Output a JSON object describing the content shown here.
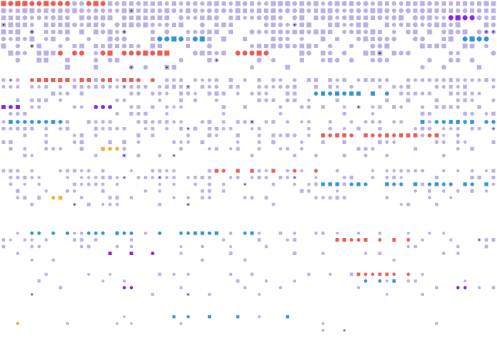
{
  "chart_data": {
    "type": "scatter",
    "title": "",
    "xlabel": "",
    "ylabel": "",
    "grid": false,
    "legend": "none",
    "colors": {
      "lavender": "#b9b0e6",
      "red": "#ec5a50",
      "blue": "#2f93d6",
      "purple": "#8a23e0",
      "orange": "#f2ad3a",
      "dark": "#41305e"
    },
    "bands": [
      {
        "name": "band-1",
        "rows": 10,
        "fill": [
          0.98,
          0.9,
          0.8,
          0.72,
          0.62,
          0.5,
          0.35,
          0.22
        ],
        "scale": 1.0
      },
      {
        "name": "band-2",
        "rows": 6,
        "fill": [
          0.7,
          0.55,
          0.4,
          0.26
        ],
        "scale": 0.82
      },
      {
        "name": "band-3",
        "rows": 6,
        "fill": [
          0.6,
          0.5,
          0.35,
          0.2
        ],
        "scale": 0.78
      },
      {
        "name": "band-4",
        "rows": 6,
        "fill": [
          0.55,
          0.45,
          0.3,
          0.18
        ],
        "scale": 0.74
      },
      {
        "name": "band-5",
        "rows": 5,
        "fill": [
          0.35,
          0.18,
          0.1
        ],
        "scale": 0.7
      },
      {
        "name": "band-6",
        "rows": 4,
        "fill": [
          0.22,
          0.1
        ],
        "scale": 0.66
      },
      {
        "name": "band-7",
        "rows": 3,
        "fill": [
          0.06
        ],
        "scale": 0.62
      }
    ],
    "highlights": [
      {
        "band": "band-1",
        "color": "red",
        "cols": [
          0,
          1,
          2,
          3,
          4,
          5,
          6,
          7,
          8,
          9,
          12,
          13,
          14
        ]
      },
      {
        "band": "band-1",
        "color": "purple",
        "cols": [
          63,
          64,
          65,
          66
        ]
      },
      {
        "band": "band-1",
        "color": "blue",
        "cols": [
          22,
          23,
          24,
          25,
          27,
          28,
          65,
          66,
          67,
          68
        ]
      },
      {
        "band": "band-1",
        "color": "red",
        "cols": [
          33,
          34,
          35,
          36,
          37,
          8,
          10,
          11,
          14,
          15,
          17,
          18,
          19,
          20,
          21,
          22,
          23
        ]
      },
      {
        "band": "band-2",
        "color": "red",
        "cols": [
          4,
          5,
          6,
          7,
          8,
          9,
          11,
          12,
          14,
          15,
          17,
          18,
          19,
          21
        ]
      },
      {
        "band": "band-2",
        "color": "blue",
        "cols": [
          44,
          45,
          46,
          47,
          48,
          49,
          50,
          52,
          54
        ]
      },
      {
        "band": "band-2",
        "color": "purple",
        "cols": [
          0,
          1,
          2,
          13,
          14,
          15
        ]
      },
      {
        "band": "band-3",
        "color": "blue",
        "cols": [
          1,
          2,
          3,
          4,
          5,
          6,
          7,
          8,
          59,
          61,
          62,
          63,
          64,
          65,
          66,
          68,
          69
        ]
      },
      {
        "band": "band-3",
        "color": "red",
        "cols": [
          45,
          46,
          47,
          48,
          49,
          51,
          52,
          53,
          54,
          55,
          56,
          57,
          58,
          60,
          61
        ]
      },
      {
        "band": "band-3",
        "color": "orange",
        "cols": [
          14,
          15,
          16
        ]
      },
      {
        "band": "band-4",
        "color": "red",
        "cols": [
          30,
          31,
          33,
          35,
          38,
          41,
          44
        ]
      },
      {
        "band": "band-4",
        "color": "blue",
        "cols": [
          45,
          46,
          47,
          49,
          50,
          51,
          54,
          55,
          56,
          58,
          60,
          61,
          62,
          63,
          65,
          66,
          68
        ]
      },
      {
        "band": "band-4",
        "color": "orange",
        "cols": [
          7,
          8
        ]
      },
      {
        "band": "band-5",
        "color": "blue",
        "cols": [
          4,
          5,
          7,
          9,
          12,
          13,
          14,
          16,
          17,
          18,
          22,
          25,
          26,
          27,
          28,
          29,
          30,
          34,
          35
        ]
      },
      {
        "band": "band-5",
        "color": "red",
        "cols": [
          47,
          48,
          49,
          50,
          51,
          53,
          55,
          57
        ]
      },
      {
        "band": "band-5",
        "color": "purple",
        "cols": [
          15,
          18,
          21
        ]
      },
      {
        "band": "band-6",
        "color": "red",
        "cols": [
          50,
          51,
          52,
          53,
          54,
          55,
          57
        ]
      },
      {
        "band": "band-6",
        "color": "blue",
        "cols": [
          51,
          53,
          55
        ]
      },
      {
        "band": "band-6",
        "color": "purple",
        "cols": [
          17,
          18,
          64,
          65
        ]
      },
      {
        "band": "band-7",
        "color": "blue",
        "cols": [
          29,
          33,
          40,
          24,
          26
        ]
      },
      {
        "band": "band-7",
        "color": "orange",
        "cols": [
          2
        ]
      }
    ],
    "columns": 70,
    "seed": 7
  }
}
